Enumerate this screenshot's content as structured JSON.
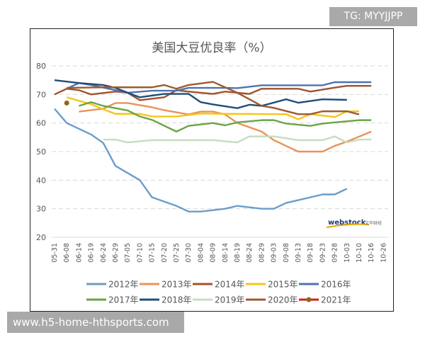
{
  "watermark_top": "TG: MYYJJPP",
  "watermark_bottom": "www.h5-home-hthsports.com",
  "logo": {
    "text": "webstock",
    "subtext": "文华财经"
  },
  "chart_data": {
    "type": "line",
    "title": "美国大豆优良率（%）",
    "xlabel": "",
    "ylabel": "",
    "ylim": [
      20,
      80
    ],
    "yticks": [
      20,
      30,
      40,
      50,
      60,
      70,
      80
    ],
    "grid": true,
    "legend_placement": "bottom",
    "categories": [
      "05-31",
      "06-08",
      "06-14",
      "06-19",
      "06-24",
      "06-29",
      "07-05",
      "07-10",
      "07-15",
      "07-20",
      "07-25",
      "07-30",
      "08-04",
      "08-09",
      "08-14",
      "08-19",
      "08-24",
      "08-29",
      "09-03",
      "09-08",
      "09-13",
      "09-18",
      "09-23",
      "09-28",
      "10-03",
      "10-10",
      "10-16",
      "10-26"
    ],
    "series": [
      {
        "name": "2012年",
        "color": "#6b9dca",
        "points": [
          [
            "05-31",
            65
          ],
          [
            "06-08",
            60
          ],
          [
            "06-19",
            56
          ],
          [
            "06-24",
            53
          ],
          [
            "06-29",
            45
          ],
          [
            "07-10",
            40
          ],
          [
            "07-15",
            34
          ],
          [
            "07-25",
            31
          ],
          [
            "07-30",
            29
          ],
          [
            "08-04",
            29
          ],
          [
            "08-14",
            30
          ],
          [
            "08-19",
            31
          ],
          [
            "08-29",
            30
          ],
          [
            "09-03",
            30
          ],
          [
            "09-08",
            32
          ],
          [
            "09-13",
            33
          ],
          [
            "09-23",
            35
          ],
          [
            "09-28",
            35
          ],
          [
            "10-03",
            37
          ]
        ]
      },
      {
        "name": "2013年",
        "color": "#e8935a",
        "points": [
          [
            "06-14",
            64
          ],
          [
            "06-24",
            65
          ],
          [
            "06-29",
            67
          ],
          [
            "07-05",
            67
          ],
          [
            "07-15",
            65.5
          ],
          [
            "07-20",
            64.5
          ],
          [
            "07-30",
            63
          ],
          [
            "08-04",
            64
          ],
          [
            "08-09",
            64
          ],
          [
            "08-14",
            63
          ],
          [
            "08-19",
            60
          ],
          [
            "08-29",
            57
          ],
          [
            "09-03",
            54
          ],
          [
            "09-08",
            52
          ],
          [
            "09-13",
            50
          ],
          [
            "09-23",
            50
          ],
          [
            "09-28",
            52
          ],
          [
            "10-03",
            53.5
          ],
          [
            "10-16",
            57
          ]
        ]
      },
      {
        "name": "2014年",
        "color": "#a0522d",
        "points": [
          [
            "05-31",
            70
          ],
          [
            "06-08",
            72
          ],
          [
            "06-14",
            71.5
          ],
          [
            "06-19",
            70
          ],
          [
            "06-29",
            71
          ],
          [
            "07-05",
            70.6
          ],
          [
            "07-10",
            68
          ],
          [
            "07-20",
            69
          ],
          [
            "07-25",
            71.5
          ],
          [
            "07-30",
            71
          ],
          [
            "08-09",
            70.2
          ],
          [
            "08-14",
            71
          ],
          [
            "08-24",
            70.2
          ],
          [
            "08-29",
            72
          ],
          [
            "09-13",
            72
          ],
          [
            "09-18",
            71
          ],
          [
            "09-28",
            72.4
          ],
          [
            "10-03",
            73
          ],
          [
            "10-16",
            73
          ]
        ]
      },
      {
        "name": "2015年",
        "color": "#f5c518",
        "points": [
          [
            "06-08",
            69
          ],
          [
            "06-19",
            66.6
          ],
          [
            "06-24",
            64.8
          ],
          [
            "06-29",
            63.2
          ],
          [
            "07-10",
            63.2
          ],
          [
            "07-15",
            62.3
          ],
          [
            "07-25",
            62.3
          ],
          [
            "08-04",
            63.3
          ],
          [
            "08-14",
            63.2
          ],
          [
            "09-08",
            63.1
          ],
          [
            "09-13",
            61.3
          ],
          [
            "09-18",
            63.1
          ],
          [
            "09-28",
            62.1
          ],
          [
            "10-03",
            64.1
          ],
          [
            "10-10",
            64.1
          ]
        ]
      },
      {
        "name": "2016年",
        "color": "#4f73b0",
        "points": [
          [
            "06-08",
            72
          ],
          [
            "06-14",
            74
          ],
          [
            "06-19",
            73.3
          ],
          [
            "07-05",
            70.6
          ],
          [
            "07-15",
            71.3
          ],
          [
            "07-25",
            71.3
          ],
          [
            "07-30",
            72.3
          ],
          [
            "08-14",
            72.3
          ],
          [
            "08-19",
            72.2
          ],
          [
            "08-29",
            73.2
          ],
          [
            "09-23",
            73.2
          ],
          [
            "09-28",
            74.3
          ],
          [
            "10-16",
            74.3
          ]
        ]
      },
      {
        "name": "2017年",
        "color": "#6aa443",
        "points": [
          [
            "06-14",
            66
          ],
          [
            "06-19",
            67.3
          ],
          [
            "06-24",
            66
          ],
          [
            "07-05",
            64.4
          ],
          [
            "07-10",
            62.3
          ],
          [
            "07-15",
            61.1
          ],
          [
            "07-25",
            57
          ],
          [
            "07-30",
            59
          ],
          [
            "08-09",
            60
          ],
          [
            "08-14",
            59.2
          ],
          [
            "08-19",
            60.2
          ],
          [
            "08-29",
            61
          ],
          [
            "09-03",
            61
          ],
          [
            "09-08",
            59.8
          ],
          [
            "09-18",
            59
          ],
          [
            "09-23",
            59.8
          ],
          [
            "09-28",
            60.2
          ],
          [
            "10-10",
            61
          ],
          [
            "10-16",
            61
          ]
        ]
      },
      {
        "name": "2018年",
        "color": "#1f4e79",
        "points": [
          [
            "05-31",
            75
          ],
          [
            "06-14",
            74
          ],
          [
            "06-24",
            73.3
          ],
          [
            "06-29",
            72.3
          ],
          [
            "07-05",
            70.6
          ],
          [
            "07-10",
            69
          ],
          [
            "07-20",
            70.2
          ],
          [
            "07-30",
            70.2
          ],
          [
            "08-04",
            67.3
          ],
          [
            "08-09",
            66.5
          ],
          [
            "08-19",
            65.2
          ],
          [
            "08-24",
            66.4
          ],
          [
            "08-29",
            66
          ],
          [
            "09-08",
            68.3
          ],
          [
            "09-13",
            67.1
          ],
          [
            "09-23",
            68.3
          ],
          [
            "10-03",
            68.1
          ]
        ]
      },
      {
        "name": "2019年",
        "color": "#c9dcc0",
        "points": [
          [
            "06-24",
            54.2
          ],
          [
            "06-29",
            54.2
          ],
          [
            "07-05",
            53.2
          ],
          [
            "07-15",
            54
          ],
          [
            "08-09",
            54
          ],
          [
            "08-19",
            53.2
          ],
          [
            "08-24",
            55.3
          ],
          [
            "09-03",
            55.3
          ],
          [
            "09-13",
            54
          ],
          [
            "09-23",
            54
          ],
          [
            "09-28",
            55.3
          ],
          [
            "10-03",
            53.2
          ],
          [
            "10-10",
            54.2
          ],
          [
            "10-16",
            54.2
          ]
        ]
      },
      {
        "name": "2020年",
        "color": "#9c5b2e",
        "points": [
          [
            "06-08",
            72.3
          ],
          [
            "06-24",
            72.5
          ],
          [
            "07-05",
            72.5
          ],
          [
            "07-15",
            72.5
          ],
          [
            "07-20",
            73.3
          ],
          [
            "07-25",
            72
          ],
          [
            "07-30",
            73.3
          ],
          [
            "08-09",
            74.4
          ],
          [
            "08-19",
            70.6
          ],
          [
            "08-29",
            66
          ],
          [
            "09-03",
            65.3
          ],
          [
            "09-13",
            63.1
          ],
          [
            "09-18",
            63.1
          ],
          [
            "09-23",
            64.1
          ],
          [
            "10-03",
            64.1
          ],
          [
            "10-10",
            63
          ]
        ]
      },
      {
        "name": "2021年",
        "color": "#8b6914",
        "legend_line_color": "#d0201a",
        "marker": true,
        "points": [
          [
            "06-08",
            67
          ]
        ]
      }
    ]
  }
}
